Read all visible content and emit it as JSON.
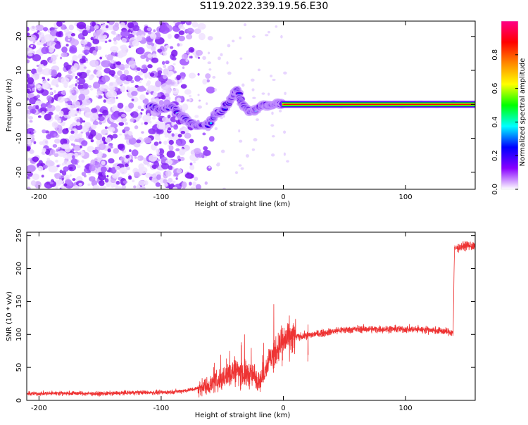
{
  "figure": {
    "title": "S119.2022.339.19.56.E30"
  },
  "chart_data": [
    {
      "type": "heatmap",
      "xlabel": "Height of straight line (km)",
      "ylabel": "Frequency (Hz)",
      "xlim": [
        -210,
        157
      ],
      "ylim": [
        -25,
        24.5
      ],
      "x_ticks": [
        -200,
        -100,
        0,
        100
      ],
      "y_ticks": [
        -20,
        -10,
        0,
        10,
        20
      ],
      "colorbar": {
        "label": "Normalized spectral amplitude",
        "range": [
          0,
          1
        ],
        "ticks": [
          0.0,
          0.2,
          0.4,
          0.6,
          0.8
        ],
        "colors": [
          "#ffffff",
          "#8800ff",
          "#0000ff",
          "#00ffff",
          "#00ff00",
          "#ffff00",
          "#ff8800",
          "#ff0000",
          "#ff0088"
        ]
      },
      "features": {
        "noise_region_x": [
          -210,
          -65
        ],
        "carrier_frequency_hz": 0,
        "carrier_x": [
          0,
          157
        ],
        "frequency_track": [
          {
            "x": -110,
            "y": -0.5
          },
          {
            "x": -100,
            "y": -1.5
          },
          {
            "x": -92,
            "y": -0.5
          },
          {
            "x": -85,
            "y": -3
          },
          {
            "x": -78,
            "y": -5
          },
          {
            "x": -70,
            "y": -6.5
          },
          {
            "x": -62,
            "y": -6
          },
          {
            "x": -55,
            "y": -3
          },
          {
            "x": -48,
            "y": -1
          },
          {
            "x": -42,
            "y": 2
          },
          {
            "x": -38,
            "y": 4.5
          },
          {
            "x": -34,
            "y": 0
          },
          {
            "x": -28,
            "y": -2
          },
          {
            "x": -22,
            "y": -1.5
          },
          {
            "x": -16,
            "y": 0
          },
          {
            "x": -10,
            "y": -0.5
          },
          {
            "x": -4,
            "y": 0.5
          },
          {
            "x": 0,
            "y": 0
          }
        ]
      }
    },
    {
      "type": "line",
      "xlabel": "Height of straight line (km)",
      "ylabel": "SNR (10 * v/v)",
      "xlim": [
        -210,
        157
      ],
      "ylim": [
        0,
        255
      ],
      "x_ticks": [
        -200,
        -100,
        0,
        100
      ],
      "y_ticks": [
        0,
        50,
        100,
        150,
        200,
        250
      ],
      "line_color": "#ee3333",
      "series": [
        {
          "x": [
            -210,
            -180,
            -150,
            -120,
            -100,
            -90,
            -80,
            -70,
            -62,
            -55,
            -48,
            -40,
            -32,
            -25,
            -18,
            -12,
            -8,
            -2,
            5,
            15,
            25,
            35,
            45,
            60,
            80,
            100,
            120,
            139,
            140,
            150,
            157
          ],
          "values": [
            10,
            11,
            10,
            12,
            12,
            13,
            15,
            18,
            22,
            28,
            35,
            45,
            40,
            38,
            30,
            62,
            70,
            85,
            95,
            97,
            100,
            103,
            106,
            108,
            108,
            108,
            107,
            103,
            230,
            235,
            233
          ]
        }
      ],
      "spikes": [
        {
          "x": -44,
          "y": 75
        },
        {
          "x": -32,
          "y": 100
        },
        {
          "x": -8,
          "y": 146
        },
        {
          "x": -1,
          "y": 110
        },
        {
          "x": 20,
          "y": 115
        }
      ]
    }
  ]
}
